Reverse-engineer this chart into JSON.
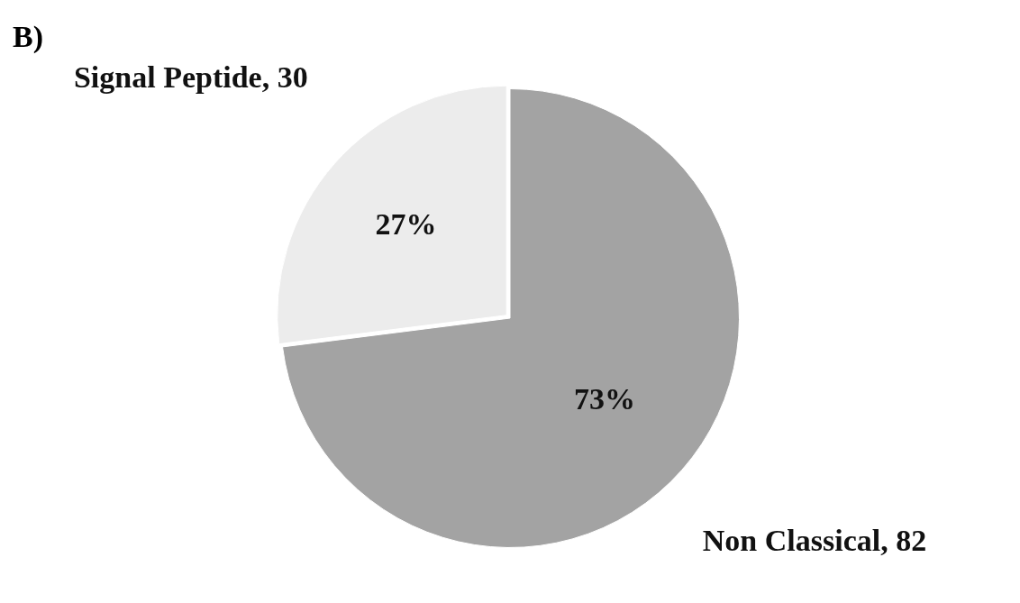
{
  "chart_data": {
    "type": "pie",
    "title": "B)",
    "categories": [
      "Signal Peptide, 30",
      "Non Classical, 82"
    ],
    "values": [
      27,
      73
    ],
    "colors": [
      "#ececec",
      "#a3a3a3"
    ],
    "value_labels": [
      "27%",
      "73%"
    ]
  }
}
